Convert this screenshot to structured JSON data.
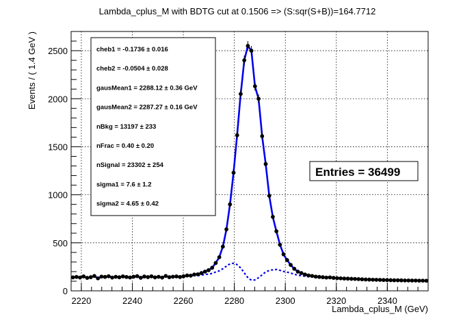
{
  "chart_data": {
    "type": "scatter",
    "title": "Lambda_cplus_M with BDTG cut at 0.1506 => (S:sqr(S+B))=164.7712",
    "xlabel": "Lambda_cplus_M (GeV)",
    "ylabel": "Events / ( 1.4 GeV )",
    "xlim": [
      2216,
      2356
    ],
    "ylim": [
      0,
      2700
    ],
    "xticks": [
      "2220",
      "2240",
      "2260",
      "2280",
      "2300",
      "2320",
      "2340"
    ],
    "yticks": [
      "0",
      "500",
      "1000",
      "1500",
      "2000",
      "2500"
    ],
    "grid": true,
    "points": {
      "x": [
        2216.7,
        2218.1,
        2219.5,
        2220.9,
        2222.3,
        2223.7,
        2225.1,
        2226.5,
        2227.9,
        2229.3,
        2230.7,
        2232.1,
        2233.5,
        2234.9,
        2236.3,
        2237.7,
        2239.1,
        2240.5,
        2241.9,
        2243.3,
        2244.7,
        2246.1,
        2247.5,
        2248.9,
        2250.3,
        2251.7,
        2253.1,
        2254.5,
        2255.9,
        2257.3,
        2258.7,
        2260.1,
        2261.5,
        2262.9,
        2264.3,
        2265.7,
        2267.1,
        2268.5,
        2269.9,
        2271.3,
        2272.7,
        2274.1,
        2275.5,
        2276.9,
        2278.3,
        2279.7,
        2281.1,
        2282.5,
        2283.9,
        2285.3,
        2286.7,
        2288.1,
        2289.5,
        2290.9,
        2292.3,
        2293.7,
        2295.1,
        2296.5,
        2297.9,
        2299.3,
        2300.7,
        2302.1,
        2303.5,
        2304.9,
        2306.3,
        2307.7,
        2309.1,
        2310.5,
        2311.9,
        2313.3,
        2314.7,
        2316.1,
        2317.5,
        2318.9,
        2320.3,
        2321.7,
        2323.1,
        2324.5,
        2325.9,
        2327.3,
        2328.7,
        2330.1,
        2331.5,
        2332.9,
        2334.3,
        2335.7,
        2337.1,
        2338.5,
        2339.9,
        2341.3,
        2342.7,
        2344.1,
        2345.5,
        2346.9,
        2348.3,
        2349.7,
        2351.1,
        2352.5,
        2353.9,
        2355.3
      ],
      "y": [
        140,
        145,
        138,
        150,
        135,
        142,
        155,
        130,
        148,
        145,
        152,
        138,
        146,
        141,
        150,
        144,
        139,
        147,
        153,
        136,
        149,
        143,
        151,
        140,
        146,
        138,
        155,
        142,
        147,
        150,
        144,
        152,
        160,
        158,
        170,
        172,
        185,
        200,
        215,
        240,
        290,
        350,
        460,
        640,
        900,
        1230,
        1620,
        2050,
        2400,
        2550,
        2500,
        2130,
        2000,
        1610,
        1320,
        990,
        770,
        620,
        480,
        380,
        320,
        270,
        230,
        200,
        185,
        170,
        160,
        155,
        148,
        145,
        142,
        138,
        140,
        135,
        132,
        130,
        128,
        127,
        125,
        124,
        122,
        120,
        118,
        117,
        116,
        115,
        114,
        113,
        112,
        111,
        110,
        110,
        109,
        108,
        108,
        107,
        107,
        106,
        106,
        105
      ]
    },
    "signal": {
      "mean": 2287.27,
      "sigma": 4.65
    },
    "params": [
      "cheb1 = -0.1736 ± 0.016",
      "cheb2 = -0.0504 ± 0.028",
      "gausMean1 =  2288.12 ± 0.36 GeV",
      "gausMean2 =  2287.27 ± 0.16 GeV",
      "nBkg =  13197 ± 233",
      "nFrac =  0.40 ± 0.20",
      "nSignal =  23302 ± 254",
      "sigma1 =  7.6 ± 1.2",
      "sigma2 =  4.65 ± 0.42"
    ],
    "entries_label": "Entries =  36499",
    "colors": {
      "fit": "#0000ee",
      "background": "#0000ee",
      "points": "#000000"
    }
  }
}
